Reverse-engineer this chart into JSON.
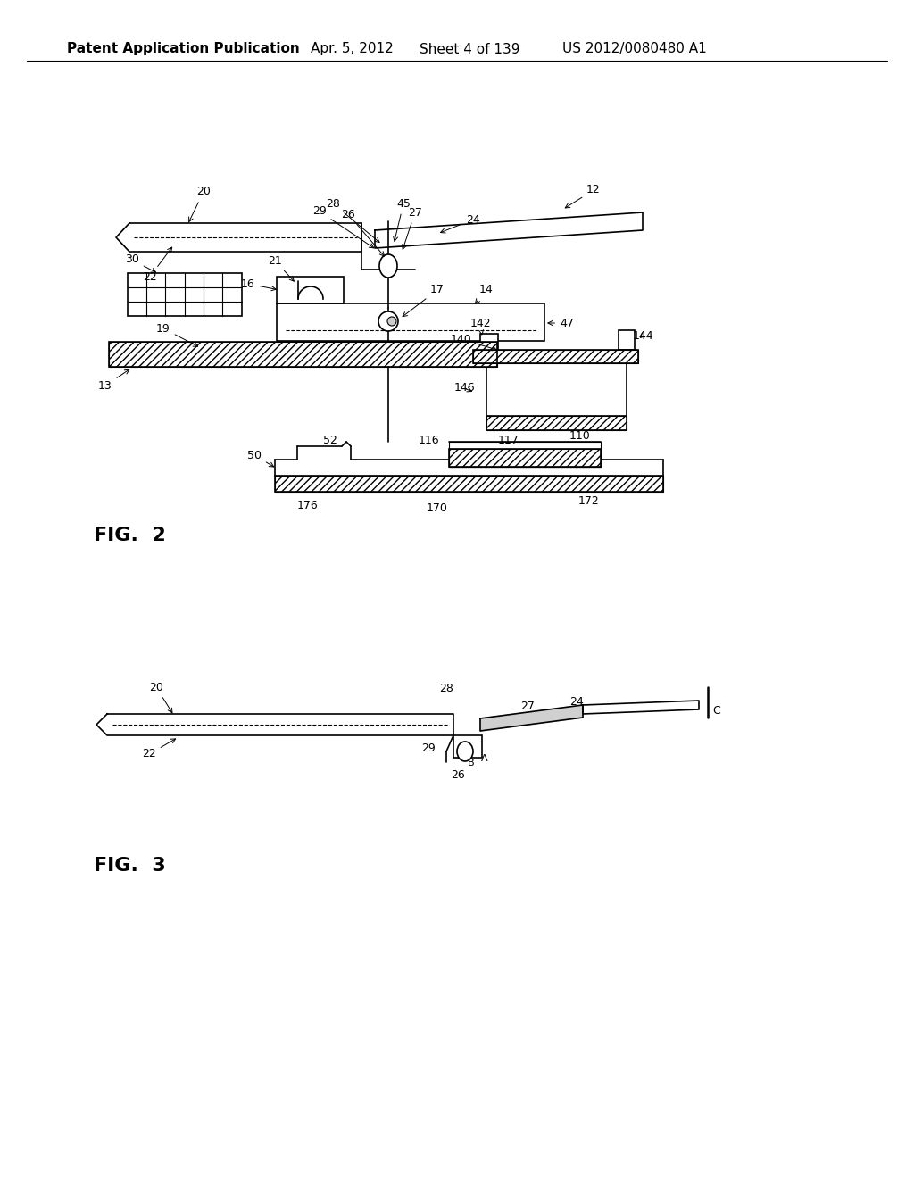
{
  "bg_color": "#ffffff",
  "header_text": "Patent Application Publication",
  "header_date": "Apr. 5, 2012",
  "header_sheet": "Sheet 4 of 139",
  "header_patent": "US 2012/0080480 A1",
  "fig2_label": "FIG.  2",
  "fig3_label": "FIG.  3",
  "header_fontsize": 11,
  "fig_label_fontsize": 16,
  "note_fontsize": 9
}
